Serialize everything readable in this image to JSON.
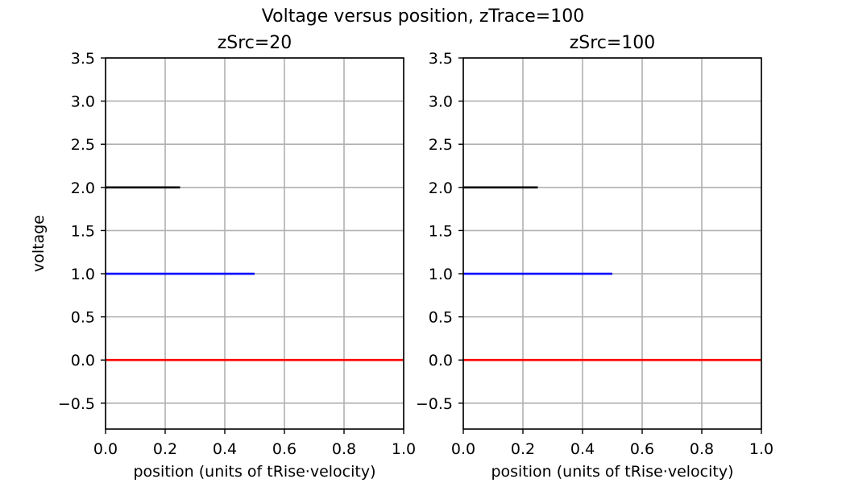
{
  "figure": {
    "suptitle": "Voltage versus position, zTrace=100"
  },
  "chart_data": [
    {
      "type": "line",
      "title": "zSrc=20",
      "xlabel": "position (units of tRise·velocity)",
      "ylabel": "voltage",
      "xlim": [
        0.0,
        1.0
      ],
      "ylim": [
        -0.8,
        3.5
      ],
      "xticks": [
        "0.0",
        "0.2",
        "0.4",
        "0.6",
        "0.8",
        "1.0"
      ],
      "yticks": [
        "−0.5",
        "0.0",
        "0.5",
        "1.0",
        "1.5",
        "2.0",
        "2.5",
        "3.0",
        "3.5"
      ],
      "grid": true,
      "series": [
        {
          "color": "#ff0000",
          "x": [
            0.0,
            1.0
          ],
          "y": [
            0.0,
            0.0
          ]
        },
        {
          "color": "#0000ff",
          "x": [
            0.0,
            0.5
          ],
          "y": [
            1.0,
            1.0
          ]
        },
        {
          "color": "#000000",
          "x": [
            0.0,
            0.25
          ],
          "y": [
            2.0,
            2.0
          ]
        }
      ]
    },
    {
      "type": "line",
      "title": "zSrc=100",
      "xlabel": "position (units of tRise·velocity)",
      "ylabel": "",
      "xlim": [
        0.0,
        1.0
      ],
      "ylim": [
        -0.8,
        3.5
      ],
      "xticks": [
        "0.0",
        "0.2",
        "0.4",
        "0.6",
        "0.8",
        "1.0"
      ],
      "yticks": [
        "−0.5",
        "0.0",
        "0.5",
        "1.0",
        "1.5",
        "2.0",
        "2.5",
        "3.0",
        "3.5"
      ],
      "grid": true,
      "series": [
        {
          "color": "#ff0000",
          "x": [
            0.0,
            1.0
          ],
          "y": [
            0.0,
            0.0
          ]
        },
        {
          "color": "#0000ff",
          "x": [
            0.0,
            0.5
          ],
          "y": [
            1.0,
            1.0
          ]
        },
        {
          "color": "#000000",
          "x": [
            0.0,
            0.25
          ],
          "y": [
            2.0,
            2.0
          ]
        }
      ]
    }
  ]
}
